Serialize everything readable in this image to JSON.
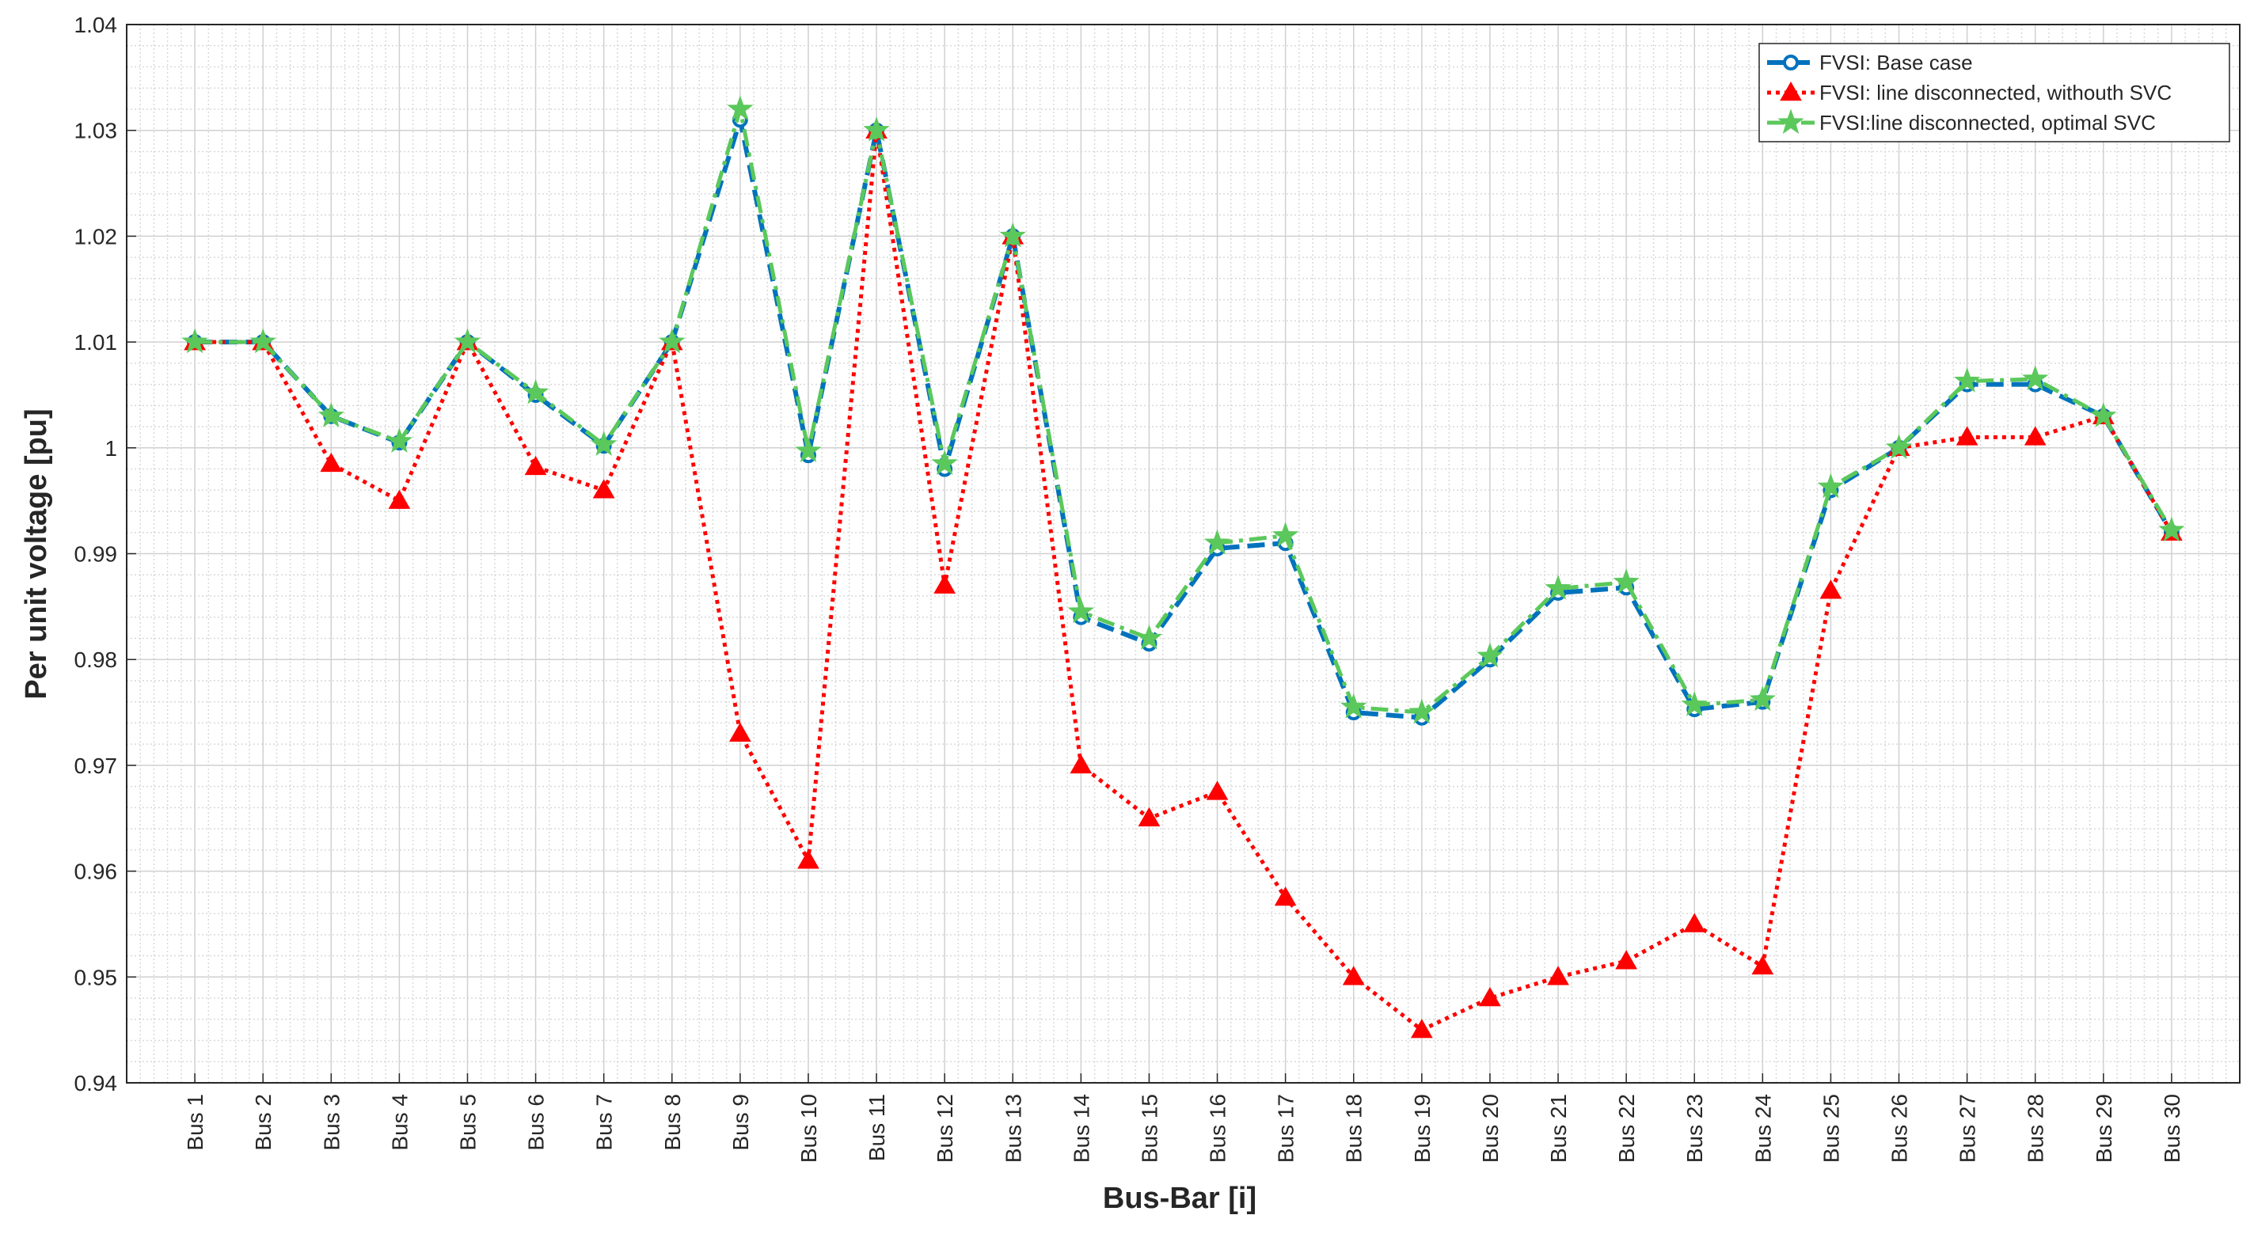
{
  "chart_data": {
    "type": "line",
    "xlabel": "Bus-Bar [i]",
    "ylabel": "Per unit voltage [pu]",
    "categories": [
      "Bus 1",
      "Bus 2",
      "Bus 3",
      "Bus 4",
      "Bus 5",
      "Bus 6",
      "Bus 7",
      "Bus 8",
      "Bus 9",
      "Bus 10",
      "Bus 11",
      "Bus 12",
      "Bus 13",
      "Bus 14",
      "Bus 15",
      "Bus 16",
      "Bus 17",
      "Bus 18",
      "Bus 19",
      "Bus 20",
      "Bus 21",
      "Bus 22",
      "Bus 23",
      "Bus 24",
      "Bus 25",
      "Bus 26",
      "Bus 27",
      "Bus 28",
      "Bus 29",
      "Bus 30"
    ],
    "series": [
      {
        "name": "FVSI: Base case",
        "color": "#0072bd",
        "marker": "circle",
        "dash": "dashed",
        "values": [
          1.01,
          1.01,
          1.003,
          1.0005,
          1.01,
          1.005,
          1.0002,
          1.01,
          1.031,
          0.9993,
          1.03,
          0.998,
          1.02,
          0.984,
          0.9815,
          0.9905,
          0.991,
          0.975,
          0.9745,
          0.98,
          0.9863,
          0.9868,
          0.9753,
          0.976,
          0.996,
          1.0,
          1.006,
          1.006,
          1.003,
          0.992
        ]
      },
      {
        "name": "FVSI: line disconnected, withouth SVC",
        "color": "#ff0000",
        "marker": "triangle",
        "dash": "dotted",
        "values": [
          1.01,
          1.01,
          0.9985,
          0.995,
          1.01,
          0.9982,
          0.996,
          1.01,
          0.973,
          0.961,
          1.03,
          0.987,
          1.02,
          0.97,
          0.965,
          0.9675,
          0.9575,
          0.95,
          0.945,
          0.948,
          0.95,
          0.9515,
          0.955,
          0.951,
          0.9865,
          1.0,
          1.001,
          1.001,
          1.003,
          0.992
        ]
      },
      {
        "name": "FVSI:line disconnected, optimal SVC",
        "color": "#5bc85b",
        "marker": "star",
        "dash": "dashdot",
        "values": [
          1.01,
          1.01,
          1.003,
          1.0006,
          1.01,
          1.0052,
          1.0003,
          1.01,
          1.032,
          0.9997,
          1.03,
          0.9985,
          1.02,
          0.9845,
          0.982,
          0.991,
          0.9917,
          0.9755,
          0.975,
          0.9803,
          0.9867,
          0.9873,
          0.9757,
          0.9762,
          0.9963,
          1.0,
          1.0063,
          1.0065,
          1.003,
          0.9922
        ]
      }
    ],
    "ylim": [
      0.94,
      1.04
    ],
    "yticks": [
      0.94,
      0.95,
      0.96,
      0.97,
      0.98,
      0.99,
      1,
      1.01,
      1.02,
      1.03,
      1.04
    ],
    "grid": true,
    "minor_grid": true,
    "legend": "top-right"
  }
}
